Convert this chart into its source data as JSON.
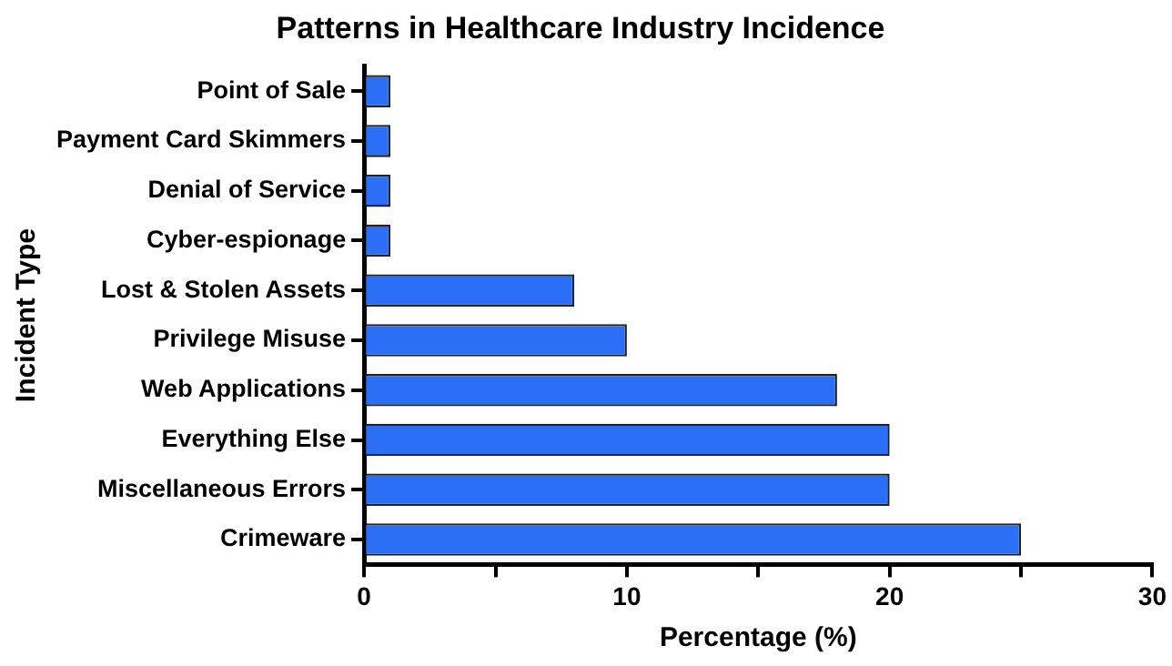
{
  "chart_data": {
    "type": "bar",
    "orientation": "horizontal",
    "title": "Patterns in Healthcare Industry Incidence",
    "xlabel": "Percentage (%)",
    "ylabel": "Incident Type",
    "categories": [
      "Point of Sale",
      "Payment Card Skimmers",
      "Denial of Service",
      "Cyber-espionage",
      "Lost & Stolen Assets",
      "Privilege Misuse",
      "Web Applications",
      "Everything Else",
      "Miscellaneous Errors",
      "Crimeware"
    ],
    "values": [
      1,
      1,
      1,
      1,
      8,
      10,
      18,
      20,
      20,
      25
    ],
    "color": "#2a6ff5",
    "xlim": [
      0,
      30
    ],
    "xticks": [
      0,
      {
        "value": 5,
        "label": null
      },
      10,
      {
        "value": 15,
        "label": null
      },
      20,
      {
        "value": 25,
        "label": null
      },
      30
    ],
    "grid": false,
    "legend": false
  }
}
